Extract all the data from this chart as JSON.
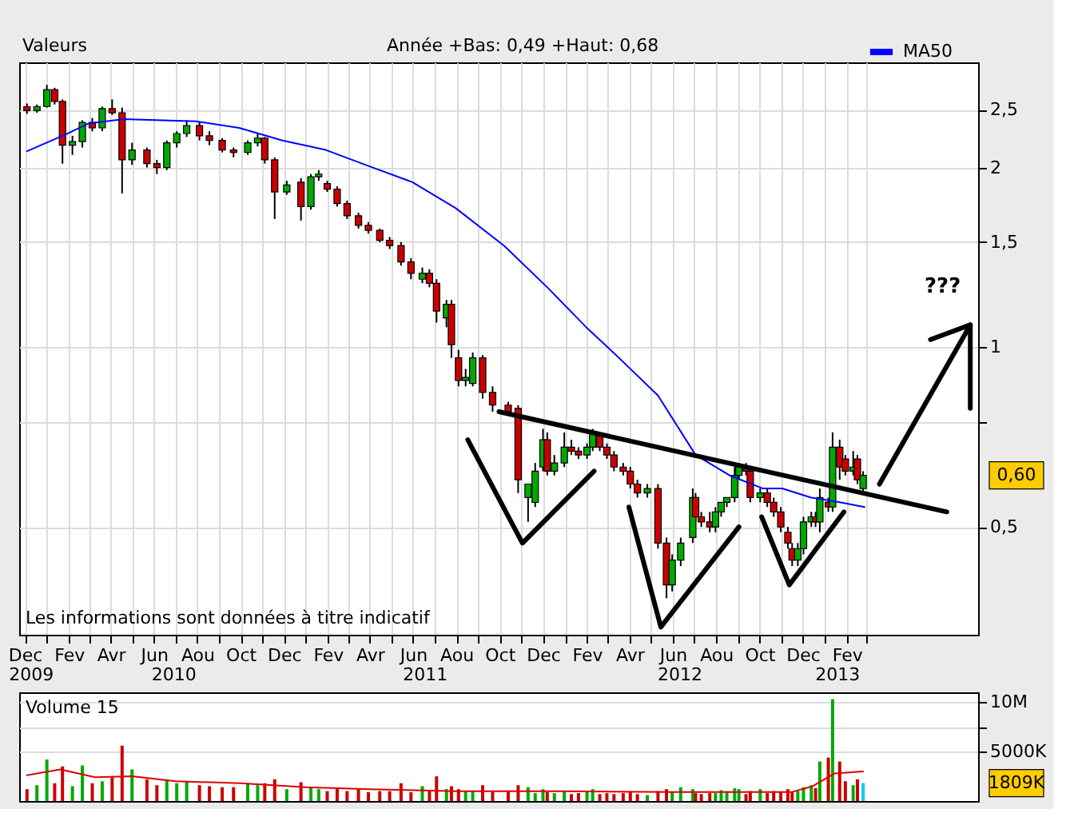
{
  "chart_data": [
    {
      "type": "candlestick",
      "xlim": [
        "2009-11-23",
        "2013-08-05"
      ],
      "xticks": [
        {
          "value": "2009-12-01",
          "label": "Dec"
        },
        {
          "value": "2010-01-01",
          "label": null
        },
        {
          "value": "2010-02-01",
          "label": "Fev"
        },
        {
          "value": "2010-03-01",
          "label": null
        },
        {
          "value": "2010-04-01",
          "label": "Avr"
        },
        {
          "value": "2010-05-01",
          "label": null
        },
        {
          "value": "2010-06-01",
          "label": "Jun"
        },
        {
          "value": "2010-07-01",
          "label": null
        },
        {
          "value": "2010-08-01",
          "label": "Aou"
        },
        {
          "value": "2010-09-01",
          "label": null
        },
        {
          "value": "2010-10-01",
          "label": "Oct"
        },
        {
          "value": "2010-11-01",
          "label": null
        },
        {
          "value": "2010-12-01",
          "label": "Dec"
        },
        {
          "value": "2011-01-01",
          "label": null
        },
        {
          "value": "2011-02-01",
          "label": "Fev"
        },
        {
          "value": "2011-03-01",
          "label": null
        },
        {
          "value": "2011-04-01",
          "label": "Avr"
        },
        {
          "value": "2011-05-01",
          "label": null
        },
        {
          "value": "2011-06-01",
          "label": "Jun"
        },
        {
          "value": "2011-07-01",
          "label": null
        },
        {
          "value": "2011-08-01",
          "label": "Aou"
        },
        {
          "value": "2011-09-01",
          "label": null
        },
        {
          "value": "2011-10-01",
          "label": "Oct"
        },
        {
          "value": "2011-11-01",
          "label": null
        },
        {
          "value": "2011-12-01",
          "label": "Dec"
        },
        {
          "value": "2012-01-01",
          "label": null
        },
        {
          "value": "2012-02-01",
          "label": "Fev"
        },
        {
          "value": "2012-03-01",
          "label": null
        },
        {
          "value": "2012-04-01",
          "label": "Avr"
        },
        {
          "value": "2012-05-01",
          "label": null
        },
        {
          "value": "2012-06-01",
          "label": "Jun"
        },
        {
          "value": "2012-07-01",
          "label": null
        },
        {
          "value": "2012-08-01",
          "label": "Aou"
        },
        {
          "value": "2012-09-01",
          "label": null
        },
        {
          "value": "2012-10-01",
          "label": "Oct"
        },
        {
          "value": "2012-11-01",
          "label": null
        },
        {
          "value": "2012-12-01",
          "label": "Dec"
        },
        {
          "value": "2013-01-01",
          "label": null
        },
        {
          "value": "2013-02-01",
          "label": "Fev"
        },
        {
          "value": "2013-03-01",
          "label": null
        }
      ],
      "x2lim": [
        "2009-11-23",
        "2013-08-05"
      ],
      "x2ticks": [
        {
          "value": "2009-12-09",
          "label": "2009"
        },
        {
          "value": "2010-06-28",
          "label": "2010"
        },
        {
          "value": "2011-06-17",
          "label": "2011"
        },
        {
          "value": "2012-06-10",
          "label": "2012"
        },
        {
          "value": "2013-01-18",
          "label": "2013"
        }
      ],
      "log": true,
      "ylim": [
        0.33,
        3.0
      ],
      "yticks": [
        {
          "value": 0.5,
          "label": "0,5"
        },
        {
          "value": 0.75,
          "label": null
        },
        1,
        {
          "value": 1.5,
          "label": "1,5"
        },
        2,
        {
          "value": 2.5,
          "label": "2,5"
        }
      ],
      "grid": true,
      "legend": "top right",
      "x": [
        "2009-12-04",
        "2009-12-18",
        "2010-01-01",
        "2010-01-12",
        "2010-01-23",
        "2010-02-06",
        "2010-02-20",
        "2010-03-06",
        "2010-03-20",
        "2010-04-03",
        "2010-04-17",
        "2010-05-01",
        "2010-05-22",
        "2010-06-05",
        "2010-06-19",
        "2010-07-03",
        "2010-07-17",
        "2010-08-04",
        "2010-08-18",
        "2010-09-05",
        "2010-09-21",
        "2010-10-11",
        "2010-10-25",
        "2010-11-04",
        "2010-11-18",
        "2010-12-05",
        "2010-12-25",
        "2011-01-08",
        "2011-01-19",
        "2011-01-31",
        "2011-02-14",
        "2011-02-28",
        "2011-03-16",
        "2011-03-30",
        "2011-04-15",
        "2011-04-29",
        "2011-05-15",
        "2011-05-29",
        "2011-06-14",
        "2011-06-24",
        "2011-07-04",
        "2011-07-18",
        "2011-07-25",
        "2011-08-04",
        "2011-08-14",
        "2011-08-24",
        "2011-09-07",
        "2011-09-21",
        "2011-10-13",
        "2011-10-27",
        "2011-11-10",
        "2011-11-20",
        "2011-12-01",
        "2011-12-07",
        "2011-12-17",
        "2011-12-31",
        "2012-01-10",
        "2012-01-20",
        "2012-02-01",
        "2012-02-09",
        "2012-02-19",
        "2012-02-29",
        "2012-03-10",
        "2012-03-23",
        "2012-04-02",
        "2012-04-12",
        "2012-04-26",
        "2012-05-11",
        "2012-05-23",
        "2012-05-31",
        "2012-06-12",
        "2012-06-29",
        "2012-07-03",
        "2012-07-11",
        "2012-07-23",
        "2012-07-31",
        "2012-08-08",
        "2012-08-16",
        "2012-08-27",
        "2012-09-02",
        "2012-09-12",
        "2012-09-18",
        "2012-10-02",
        "2012-10-12",
        "2012-10-21",
        "2012-10-31",
        "2012-11-10",
        "2012-11-16",
        "2012-11-24",
        "2012-12-02",
        "2012-12-13",
        "2012-12-19",
        "2012-12-25",
        "2013-01-06",
        "2013-01-12",
        "2013-01-22",
        "2013-01-30",
        "2013-02-10",
        "2013-02-16",
        "2013-02-24"
      ],
      "ohlc": [
        [
          2.53,
          2.56,
          2.46,
          2.49
        ],
        [
          2.49,
          2.55,
          2.47,
          2.53
        ],
        [
          2.53,
          2.75,
          2.52,
          2.7
        ],
        [
          2.7,
          2.72,
          2.55,
          2.58
        ],
        [
          2.58,
          2.6,
          2.03,
          2.18
        ],
        [
          2.18,
          2.26,
          2.1,
          2.21
        ],
        [
          2.21,
          2.4,
          2.16,
          2.38
        ],
        [
          2.38,
          2.42,
          2.3,
          2.33
        ],
        [
          2.33,
          2.53,
          2.3,
          2.51
        ],
        [
          2.51,
          2.6,
          2.45,
          2.47
        ],
        [
          2.47,
          2.52,
          1.81,
          2.06
        ],
        [
          2.06,
          2.2,
          2.02,
          2.14
        ],
        [
          2.14,
          2.16,
          2.0,
          2.03
        ],
        [
          2.03,
          2.06,
          1.95,
          2.0
        ],
        [
          2.0,
          2.22,
          1.98,
          2.2
        ],
        [
          2.2,
          2.3,
          2.16,
          2.28
        ],
        [
          2.28,
          2.4,
          2.25,
          2.35
        ],
        [
          2.35,
          2.38,
          2.22,
          2.26
        ],
        [
          2.26,
          2.3,
          2.18,
          2.22
        ],
        [
          2.22,
          2.24,
          2.12,
          2.14
        ],
        [
          2.14,
          2.16,
          2.08,
          2.12
        ],
        [
          2.12,
          2.22,
          2.1,
          2.2
        ],
        [
          2.2,
          2.28,
          2.17,
          2.24
        ],
        [
          2.24,
          2.25,
          2.03,
          2.06
        ],
        [
          2.06,
          2.08,
          1.64,
          1.82
        ],
        [
          1.82,
          1.9,
          1.8,
          1.87
        ],
        [
          1.89,
          1.92,
          1.63,
          1.72
        ],
        [
          1.72,
          1.95,
          1.7,
          1.93
        ],
        [
          1.93,
          1.98,
          1.9,
          1.95
        ],
        [
          1.88,
          1.9,
          1.82,
          1.84
        ],
        [
          1.84,
          1.86,
          1.72,
          1.74
        ],
        [
          1.74,
          1.76,
          1.64,
          1.66
        ],
        [
          1.66,
          1.68,
          1.58,
          1.6
        ],
        [
          1.6,
          1.62,
          1.55,
          1.57
        ],
        [
          1.57,
          1.58,
          1.5,
          1.51
        ],
        [
          1.51,
          1.53,
          1.46,
          1.48
        ],
        [
          1.48,
          1.5,
          1.37,
          1.39
        ],
        [
          1.39,
          1.41,
          1.3,
          1.33
        ],
        [
          1.3,
          1.36,
          1.28,
          1.33
        ],
        [
          1.33,
          1.35,
          1.26,
          1.28
        ],
        [
          1.28,
          1.3,
          1.1,
          1.15
        ],
        [
          1.12,
          1.2,
          1.08,
          1.18
        ],
        [
          1.18,
          1.2,
          0.96,
          1.01
        ],
        [
          0.96,
          0.99,
          0.86,
          0.88
        ],
        [
          0.88,
          0.92,
          0.86,
          0.89
        ],
        [
          0.87,
          0.98,
          0.86,
          0.96
        ],
        [
          0.96,
          0.97,
          0.82,
          0.84
        ],
        [
          0.84,
          0.86,
          0.78,
          0.8
        ],
        [
          0.8,
          0.81,
          0.77,
          0.78
        ],
        [
          0.79,
          0.8,
          0.57,
          0.6
        ],
        [
          0.56,
          0.59,
          0.51,
          0.59
        ],
        [
          0.55,
          0.64,
          0.54,
          0.62
        ],
        [
          0.63,
          0.73,
          0.62,
          0.7
        ],
        [
          0.7,
          0.72,
          0.61,
          0.62
        ],
        [
          0.62,
          0.66,
          0.61,
          0.64
        ],
        [
          0.64,
          0.72,
          0.63,
          0.68
        ],
        [
          0.68,
          0.7,
          0.66,
          0.67
        ],
        [
          0.67,
          0.68,
          0.65,
          0.66
        ],
        [
          0.66,
          0.69,
          0.65,
          0.68
        ],
        [
          0.68,
          0.73,
          0.67,
          0.72
        ],
        [
          0.71,
          0.72,
          0.67,
          0.68
        ],
        [
          0.68,
          0.69,
          0.65,
          0.66
        ],
        [
          0.66,
          0.67,
          0.62,
          0.63
        ],
        [
          0.63,
          0.64,
          0.61,
          0.62
        ],
        [
          0.62,
          0.63,
          0.58,
          0.59
        ],
        [
          0.59,
          0.6,
          0.56,
          0.57
        ],
        [
          0.57,
          0.59,
          0.56,
          0.58
        ],
        [
          0.58,
          0.59,
          0.46,
          0.47
        ],
        [
          0.47,
          0.48,
          0.38,
          0.4
        ],
        [
          0.4,
          0.45,
          0.39,
          0.44
        ],
        [
          0.44,
          0.48,
          0.43,
          0.47
        ],
        [
          0.48,
          0.58,
          0.47,
          0.56
        ],
        [
          0.56,
          0.57,
          0.51,
          0.52
        ],
        [
          0.52,
          0.53,
          0.5,
          0.51
        ],
        [
          0.51,
          0.53,
          0.49,
          0.5
        ],
        [
          0.5,
          0.54,
          0.49,
          0.53
        ],
        [
          0.53,
          0.55,
          0.52,
          0.55
        ],
        [
          0.55,
          0.56,
          0.54,
          0.56
        ],
        [
          0.56,
          0.63,
          0.55,
          0.61
        ],
        [
          0.61,
          0.64,
          0.6,
          0.63
        ],
        [
          0.63,
          0.64,
          0.61,
          0.62
        ],
        [
          0.62,
          0.63,
          0.55,
          0.56
        ],
        [
          0.56,
          0.58,
          0.55,
          0.57
        ],
        [
          0.57,
          0.58,
          0.54,
          0.55
        ],
        [
          0.55,
          0.56,
          0.52,
          0.53
        ],
        [
          0.53,
          0.54,
          0.49,
          0.5
        ],
        [
          0.49,
          0.5,
          0.46,
          0.47
        ],
        [
          0.46,
          0.47,
          0.43,
          0.44
        ],
        [
          0.44,
          0.47,
          0.43,
          0.46
        ],
        [
          0.46,
          0.52,
          0.45,
          0.51
        ],
        [
          0.51,
          0.53,
          0.5,
          0.52
        ],
        [
          0.52,
          0.53,
          0.5,
          0.51
        ],
        [
          0.51,
          0.58,
          0.49,
          0.56
        ],
        [
          0.55,
          0.56,
          0.53,
          0.54
        ],
        [
          0.54,
          0.72,
          0.53,
          0.68
        ],
        [
          0.68,
          0.7,
          0.6,
          0.63
        ],
        [
          0.65,
          0.66,
          0.61,
          0.62
        ],
        [
          0.62,
          0.67,
          0.61,
          0.63
        ],
        [
          0.65,
          0.66,
          0.59,
          0.6
        ],
        [
          0.58,
          0.62,
          0.57,
          0.61
        ]
      ],
      "colors": [
        "#cc0000",
        "#00aa00",
        "#00aa00",
        "#cc0000",
        "#cc0000",
        "#00aa00",
        "#00aa00",
        "#cc0000",
        "#00aa00",
        "#cc0000",
        "#cc0000",
        "#00aa00",
        "#cc0000",
        "#cc0000",
        "#00aa00",
        "#00aa00",
        "#00aa00",
        "#cc0000",
        "#cc0000",
        "#cc0000",
        "#cc0000",
        "#00aa00",
        "#00aa00",
        "#cc0000",
        "#cc0000",
        "#00aa00",
        "#cc0000",
        "#00aa00",
        "#00aa00",
        "#cc0000",
        "#cc0000",
        "#cc0000",
        "#cc0000",
        "#cc0000",
        "#cc0000",
        "#cc0000",
        "#cc0000",
        "#cc0000",
        "#00aa00",
        "#cc0000",
        "#cc0000",
        "#00aa00",
        "#cc0000",
        "#cc0000",
        "#00aa00",
        "#00aa00",
        "#cc0000",
        "#cc0000",
        "#cc0000",
        "#cc0000",
        "#00aa00",
        "#00aa00",
        "#00aa00",
        "#cc0000",
        "#00aa00",
        "#00aa00",
        "#cc0000",
        "#cc0000",
        "#00aa00",
        "#00aa00",
        "#cc0000",
        "#cc0000",
        "#cc0000",
        "#cc0000",
        "#cc0000",
        "#cc0000",
        "#00aa00",
        "#cc0000",
        "#cc0000",
        "#00aa00",
        "#00aa00",
        "#00aa00",
        "#cc0000",
        "#cc0000",
        "#cc0000",
        "#00aa00",
        "#00aa00",
        "#00aa00",
        "#00aa00",
        "#00aa00",
        "#cc0000",
        "#cc0000",
        "#00aa00",
        "#cc0000",
        "#cc0000",
        "#cc0000",
        "#cc0000",
        "#cc0000",
        "#00aa00",
        "#00aa00",
        "#00aa00",
        "#cc0000",
        "#00aa00",
        "#cc0000",
        "#00aa00",
        "#cc0000",
        "#cc0000",
        "#00aa00",
        "#cc0000",
        "#00aa00"
      ],
      "series": [
        {
          "type": "line",
          "name": "MA50",
          "color": "#0000ff",
          "x": [
            "2009-12-04",
            "2010-01-27",
            "2010-03-01",
            "2010-04-19",
            "2010-07-30",
            "2010-09-29",
            "2010-11-29",
            "2011-01-29",
            "2011-03-31",
            "2011-05-31",
            "2011-07-31",
            "2011-10-07",
            "2011-12-07",
            "2012-01-31",
            "2012-03-17",
            "2012-05-11",
            "2012-07-03",
            "2012-08-20",
            "2012-10-06",
            "2012-11-02",
            "2012-12-13",
            "2013-01-22",
            "2013-02-26"
          ],
          "values": [
            2.13,
            2.27,
            2.37,
            2.41,
            2.39,
            2.33,
            2.22,
            2.14,
            2.01,
            1.89,
            1.71,
            1.48,
            1.26,
            1.08,
            0.96,
            0.83,
            0.66,
            0.61,
            0.58,
            0.58,
            0.56,
            0.55,
            0.54
          ]
        },
        {
          "type": "line",
          "color": "#000000",
          "x": [
            "2011-09-30",
            "2013-06-22"
          ],
          "values": [
            0.78,
            0.53
          ]
        },
        {
          "type": "line",
          "color": "#000000",
          "x": [
            "2011-08-17",
            "2011-11-02",
            "2012-02-11"
          ],
          "values": [
            0.7,
            0.47,
            0.62
          ]
        },
        {
          "type": "line",
          "color": "#000000",
          "x": [
            "2012-03-31",
            "2012-05-15",
            "2012-09-02"
          ],
          "values": [
            0.54,
            0.34,
            0.5
          ]
        },
        {
          "type": "line",
          "color": "#000000",
          "x": [
            "2012-10-04",
            "2012-11-12",
            "2013-01-28"
          ],
          "values": [
            0.52,
            0.4,
            0.53
          ]
        },
        {
          "type": "line",
          "color": "#000000",
          "x": [
            "2013-03-19",
            "2013-07-25"
          ],
          "values": [
            0.59,
            1.09
          ]
        },
        {
          "type": "line",
          "color": "#000000",
          "x": [
            "2013-05-30",
            "2013-07-25",
            "2013-07-25"
          ],
          "values": [
            1.03,
            1.09,
            0.79
          ]
        }
      ],
      "annotations": [
        "Valeurs",
        "Année +Bas: 0,49 +Haut: 0,68",
        "Les informations sont données à titre indicatif",
        "???",
        "0,60"
      ]
    },
    {
      "type": "bar",
      "title": "Volume 15",
      "xlim": [
        "2009-11-23",
        "2013-08-05"
      ],
      "ylim": [
        0,
        11000000
      ],
      "yticks": [
        {
          "value": 5000000,
          "label": "5000K"
        },
        {
          "value": 7500000,
          "label": null
        },
        {
          "value": 10000000,
          "label": "10M"
        }
      ],
      "grid": true,
      "tick_labels": "y",
      "x": [
        "2009-12-04",
        "2009-12-18",
        "2010-01-01",
        "2010-01-12",
        "2010-01-23",
        "2010-02-06",
        "2010-02-20",
        "2010-03-06",
        "2010-03-20",
        "2010-04-03",
        "2010-04-17",
        "2010-05-01",
        "2010-05-22",
        "2010-06-05",
        "2010-06-19",
        "2010-07-03",
        "2010-07-17",
        "2010-08-04",
        "2010-08-18",
        "2010-09-05",
        "2010-09-21",
        "2010-10-11",
        "2010-10-25",
        "2010-11-04",
        "2010-11-18",
        "2010-12-05",
        "2010-12-25",
        "2011-01-08",
        "2011-01-19",
        "2011-01-31",
        "2011-02-14",
        "2011-02-28",
        "2011-03-16",
        "2011-03-30",
        "2011-04-15",
        "2011-04-29",
        "2011-05-15",
        "2011-05-29",
        "2011-06-14",
        "2011-06-24",
        "2011-07-04",
        "2011-07-18",
        "2011-07-25",
        "2011-08-04",
        "2011-08-14",
        "2011-08-24",
        "2011-09-07",
        "2011-09-21",
        "2011-10-13",
        "2011-10-27",
        "2011-11-10",
        "2011-11-20",
        "2011-12-01",
        "2011-12-07",
        "2011-12-17",
        "2011-12-31",
        "2012-01-10",
        "2012-01-20",
        "2012-02-01",
        "2012-02-09",
        "2012-02-19",
        "2012-02-29",
        "2012-03-10",
        "2012-03-23",
        "2012-04-02",
        "2012-04-12",
        "2012-04-26",
        "2012-05-11",
        "2012-05-23",
        "2012-05-31",
        "2012-06-12",
        "2012-06-29",
        "2012-07-03",
        "2012-07-11",
        "2012-07-23",
        "2012-07-31",
        "2012-08-08",
        "2012-08-16",
        "2012-08-27",
        "2012-09-02",
        "2012-09-12",
        "2012-09-18",
        "2012-10-02",
        "2012-10-12",
        "2012-10-21",
        "2012-10-31",
        "2012-11-10",
        "2012-11-16",
        "2012-11-24",
        "2012-12-02",
        "2012-12-13",
        "2012-12-19",
        "2012-12-25",
        "2013-01-06",
        "2013-01-12",
        "2013-01-22",
        "2013-01-30",
        "2013-02-10",
        "2013-02-16",
        "2013-02-24"
      ],
      "series": [
        {
          "type": "bar",
          "values": [
            1200000,
            1600000,
            4200000,
            1800000,
            3500000,
            1500000,
            3600000,
            1800000,
            2000000,
            2400000,
            5600000,
            3200000,
            2200000,
            1600000,
            2200000,
            1800000,
            2000000,
            1600000,
            1500000,
            1400000,
            1400000,
            1800000,
            1600000,
            1800000,
            2200000,
            1200000,
            1900000,
            1400000,
            1200000,
            1000000,
            1300000,
            1000000,
            1200000,
            900000,
            1000000,
            1000000,
            1800000,
            900000,
            1500000,
            1000000,
            2500000,
            1200000,
            1500000,
            1200000,
            1000000,
            1000000,
            1600000,
            900000,
            1000000,
            1600000,
            1400000,
            800000,
            1200000,
            900000,
            800000,
            1000000,
            700000,
            800000,
            1000000,
            1200000,
            700000,
            800000,
            700000,
            800000,
            900000,
            700000,
            600000,
            1000000,
            1200000,
            900000,
            1400000,
            1200000,
            800000,
            700000,
            800000,
            800000,
            1100000,
            1000000,
            1300000,
            1200000,
            700000,
            1000000,
            1200000,
            800000,
            1000000,
            900000,
            1200000,
            900000,
            1000000,
            1400000,
            1600000,
            1300000,
            4000000,
            4400000,
            10300000,
            4000000,
            2000000,
            1600000,
            2200000,
            1809000
          ],
          "colors": [
            "#cc0000",
            "#00aa00",
            "#00aa00",
            "#cc0000",
            "#cc0000",
            "#00aa00",
            "#00aa00",
            "#cc0000",
            "#00aa00",
            "#cc0000",
            "#cc0000",
            "#00aa00",
            "#cc0000",
            "#cc0000",
            "#00aa00",
            "#00aa00",
            "#00aa00",
            "#cc0000",
            "#cc0000",
            "#cc0000",
            "#cc0000",
            "#00aa00",
            "#00aa00",
            "#cc0000",
            "#cc0000",
            "#00aa00",
            "#cc0000",
            "#00aa00",
            "#00aa00",
            "#cc0000",
            "#cc0000",
            "#cc0000",
            "#cc0000",
            "#cc0000",
            "#cc0000",
            "#cc0000",
            "#cc0000",
            "#cc0000",
            "#00aa00",
            "#cc0000",
            "#cc0000",
            "#00aa00",
            "#cc0000",
            "#cc0000",
            "#00aa00",
            "#00aa00",
            "#cc0000",
            "#cc0000",
            "#cc0000",
            "#cc0000",
            "#00aa00",
            "#00aa00",
            "#00aa00",
            "#cc0000",
            "#00aa00",
            "#00aa00",
            "#cc0000",
            "#cc0000",
            "#00aa00",
            "#00aa00",
            "#cc0000",
            "#cc0000",
            "#cc0000",
            "#cc0000",
            "#cc0000",
            "#cc0000",
            "#00aa00",
            "#cc0000",
            "#cc0000",
            "#00aa00",
            "#00aa00",
            "#00aa00",
            "#cc0000",
            "#cc0000",
            "#cc0000",
            "#00aa00",
            "#00aa00",
            "#00aa00",
            "#00aa00",
            "#00aa00",
            "#cc0000",
            "#cc0000",
            "#00aa00",
            "#cc0000",
            "#cc0000",
            "#cc0000",
            "#cc0000",
            "#cc0000",
            "#00aa00",
            "#00aa00",
            "#00aa00",
            "#cc0000",
            "#00aa00",
            "#cc0000",
            "#00aa00",
            "#cc0000",
            "#cc0000",
            "#00aa00",
            "#cc0000",
            "#00ccee"
          ]
        },
        {
          "type": "line",
          "color": "#dd0000",
          "x": [
            "2009-12-04",
            "2010-01-20",
            "2010-03-10",
            "2010-05-01",
            "2010-07-01",
            "2010-10-01",
            "2011-01-01",
            "2011-04-01",
            "2011-08-01",
            "2012-01-01",
            "2012-06-01",
            "2012-11-15",
            "2012-12-15",
            "2013-01-15",
            "2013-02-24"
          ],
          "values": [
            2600000,
            3200000,
            2400000,
            2500000,
            2000000,
            1800000,
            1400000,
            1200000,
            1000000,
            1000000,
            900000,
            900000,
            1500000,
            2800000,
            3000000
          ]
        }
      ],
      "annotations": [
        "1809K"
      ]
    }
  ]
}
